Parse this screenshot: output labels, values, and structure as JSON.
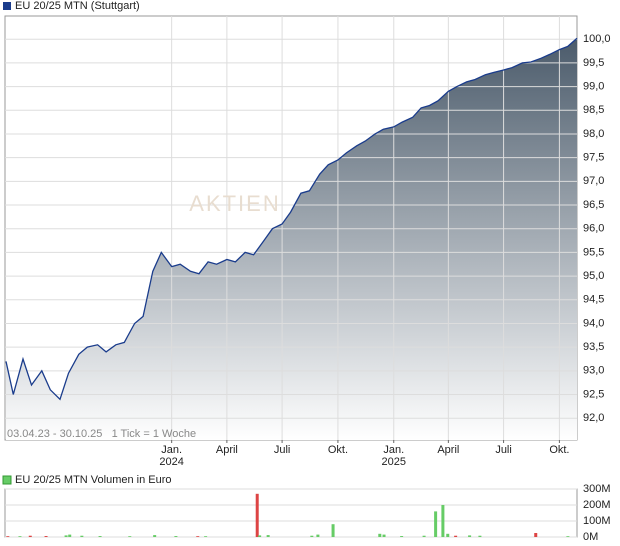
{
  "chart_data": [
    {
      "type": "area",
      "caption": "03.04.23 - 30.10.25   1 Tick = 1 Woche",
      "watermark": "AKTIEN",
      "x": [
        "2023-04-03",
        "2023-04-15",
        "2023-05-01",
        "2023-05-15",
        "2023-06-01",
        "2023-06-15",
        "2023-07-01",
        "2023-07-15",
        "2023-08-01",
        "2023-08-15",
        "2023-09-01",
        "2023-09-15",
        "2023-10-01",
        "2023-10-15",
        "2023-11-01",
        "2023-11-15",
        "2023-12-01",
        "2023-12-15",
        "2024-01-01",
        "2024-01-15",
        "2024-02-01",
        "2024-02-15",
        "2024-03-01",
        "2024-03-15",
        "2024-04-01",
        "2024-04-15",
        "2024-05-01",
        "2024-05-15",
        "2024-06-01",
        "2024-06-15",
        "2024-07-01",
        "2024-07-15",
        "2024-08-01",
        "2024-08-15",
        "2024-09-01",
        "2024-09-15",
        "2024-10-01",
        "2024-10-15",
        "2024-11-01",
        "2024-11-15",
        "2024-12-01",
        "2024-12-15",
        "2025-01-01",
        "2025-01-15",
        "2025-02-01",
        "2025-02-15",
        "2025-03-01",
        "2025-03-15",
        "2025-04-01",
        "2025-04-15",
        "2025-05-01",
        "2025-05-15",
        "2025-06-01",
        "2025-06-15",
        "2025-07-01",
        "2025-07-15",
        "2025-08-01",
        "2025-08-15",
        "2025-09-01",
        "2025-09-15",
        "2025-10-01",
        "2025-10-15",
        "2025-10-30"
      ],
      "series": [
        {
          "name": "EU 20/25 MTN (Stuttgart)",
          "color": "#1a3c8c",
          "fill_color": "#4b5b6b",
          "values": [
            93.2,
            92.5,
            93.25,
            92.7,
            93.0,
            92.6,
            92.4,
            92.95,
            93.35,
            93.5,
            93.55,
            93.4,
            93.55,
            93.6,
            94.0,
            94.15,
            95.1,
            95.5,
            95.2,
            95.25,
            95.1,
            95.05,
            95.3,
            95.25,
            95.35,
            95.3,
            95.5,
            95.45,
            95.75,
            96.0,
            96.1,
            96.35,
            96.75,
            96.8,
            97.15,
            97.35,
            97.45,
            97.6,
            97.75,
            97.85,
            98.0,
            98.1,
            98.15,
            98.25,
            98.35,
            98.55,
            98.6,
            98.7,
            98.9,
            99.0,
            99.1,
            99.15,
            99.25,
            99.3,
            99.35,
            99.4,
            99.5,
            99.52,
            99.6,
            99.68,
            99.78,
            99.85,
            100.02
          ]
        }
      ],
      "xlim": [
        "2023-04-03",
        "2025-10-30"
      ],
      "xticks": [
        {
          "value": "2024-01-01",
          "label": "Jan."
        },
        {
          "value": "2024-04-01",
          "label": "April"
        },
        {
          "value": "2024-07-01",
          "label": "Juli"
        },
        {
          "value": "2024-10-01",
          "label": "Okt."
        },
        {
          "value": "2025-01-01",
          "label": "Jan."
        },
        {
          "value": "2025-04-01",
          "label": "April"
        },
        {
          "value": "2025-07-01",
          "label": "Juli"
        },
        {
          "value": "2025-10-01",
          "label": "Okt."
        }
      ],
      "xtick_years": [
        {
          "value": "2024-01-01",
          "label": "2024"
        },
        {
          "value": "2025-01-01",
          "label": "2025"
        }
      ],
      "ylim": [
        91.54,
        100.49
      ],
      "yticks": [
        {
          "value": 92,
          "label": "92,0"
        },
        {
          "value": 92.5,
          "label": "92,5"
        },
        {
          "value": 93,
          "label": "93,0"
        },
        {
          "value": 93.5,
          "label": "93,5"
        },
        {
          "value": 94,
          "label": "94,0"
        },
        {
          "value": 94.5,
          "label": "94,5"
        },
        {
          "value": 95,
          "label": "95,0"
        },
        {
          "value": 95.5,
          "label": "95,5"
        },
        {
          "value": 96,
          "label": "96,0"
        },
        {
          "value": 96.5,
          "label": "96,5"
        },
        {
          "value": 97,
          "label": "97,0"
        },
        {
          "value": 97.5,
          "label": "97,5"
        },
        {
          "value": 98,
          "label": "98,0"
        },
        {
          "value": 98.5,
          "label": "98,5"
        },
        {
          "value": 99,
          "label": "99,0"
        },
        {
          "value": 99.5,
          "label": "99,5"
        },
        {
          "value": 100,
          "label": "100,0"
        }
      ],
      "grid": true
    },
    {
      "type": "bar",
      "x": [
        "2023-04-06",
        "2023-04-26",
        "2023-05-13",
        "2023-06-08",
        "2023-07-11",
        "2023-07-17",
        "2023-08-06",
        "2023-09-05",
        "2023-10-24",
        "2023-12-04",
        "2024-01-08",
        "2024-02-13",
        "2024-02-26",
        "2024-05-21",
        "2024-05-25",
        "2024-06-08",
        "2024-08-19",
        "2024-08-29",
        "2024-09-23",
        "2024-12-09",
        "2024-12-16",
        "2025-01-14",
        "2025-02-20",
        "2025-03-11",
        "2025-03-23",
        "2025-03-31",
        "2025-04-13",
        "2025-05-06",
        "2025-05-23",
        "2025-08-23",
        "2025-10-15"
      ],
      "series": [
        {
          "name": "EU 20/25 MTN Volumen in Euro",
          "color": "#66cc66",
          "values": [
            5000000,
            5000000,
            8000000,
            6000000,
            10000000,
            15000000,
            8000000,
            6000000,
            5000000,
            12000000,
            6000000,
            5000000,
            5000000,
            270000000,
            10000000,
            12000000,
            8000000,
            15000000,
            80000000,
            20000000,
            15000000,
            6000000,
            8000000,
            160000000,
            200000000,
            20000000,
            8000000,
            10000000,
            8000000,
            25000000,
            5000000
          ],
          "colors": [
            "#dd4444",
            "#66cc66",
            "#dd4444",
            "#dd4444",
            "#66cc66",
            "#66cc66",
            "#66cc66",
            "#66cc66",
            "#66cc66",
            "#66cc66",
            "#66cc66",
            "#dd4444",
            "#66cc66",
            "#dd4444",
            "#66cc66",
            "#66cc66",
            "#66cc66",
            "#66cc66",
            "#66cc66",
            "#66cc66",
            "#66cc66",
            "#66cc66",
            "#66cc66",
            "#66cc66",
            "#66cc66",
            "#66cc66",
            "#dd4444",
            "#66cc66",
            "#66cc66",
            "#dd4444",
            "#66cc66"
          ]
        }
      ],
      "xlim": [
        "2023-04-03",
        "2025-10-30"
      ],
      "ylim": [
        0,
        300000000
      ],
      "yticks": [
        {
          "value": 0,
          "label": "0M"
        },
        {
          "value": 100000000,
          "label": "100M"
        },
        {
          "value": 200000000,
          "label": "200M"
        },
        {
          "value": 300000000,
          "label": "300M"
        }
      ],
      "grid": true
    }
  ]
}
